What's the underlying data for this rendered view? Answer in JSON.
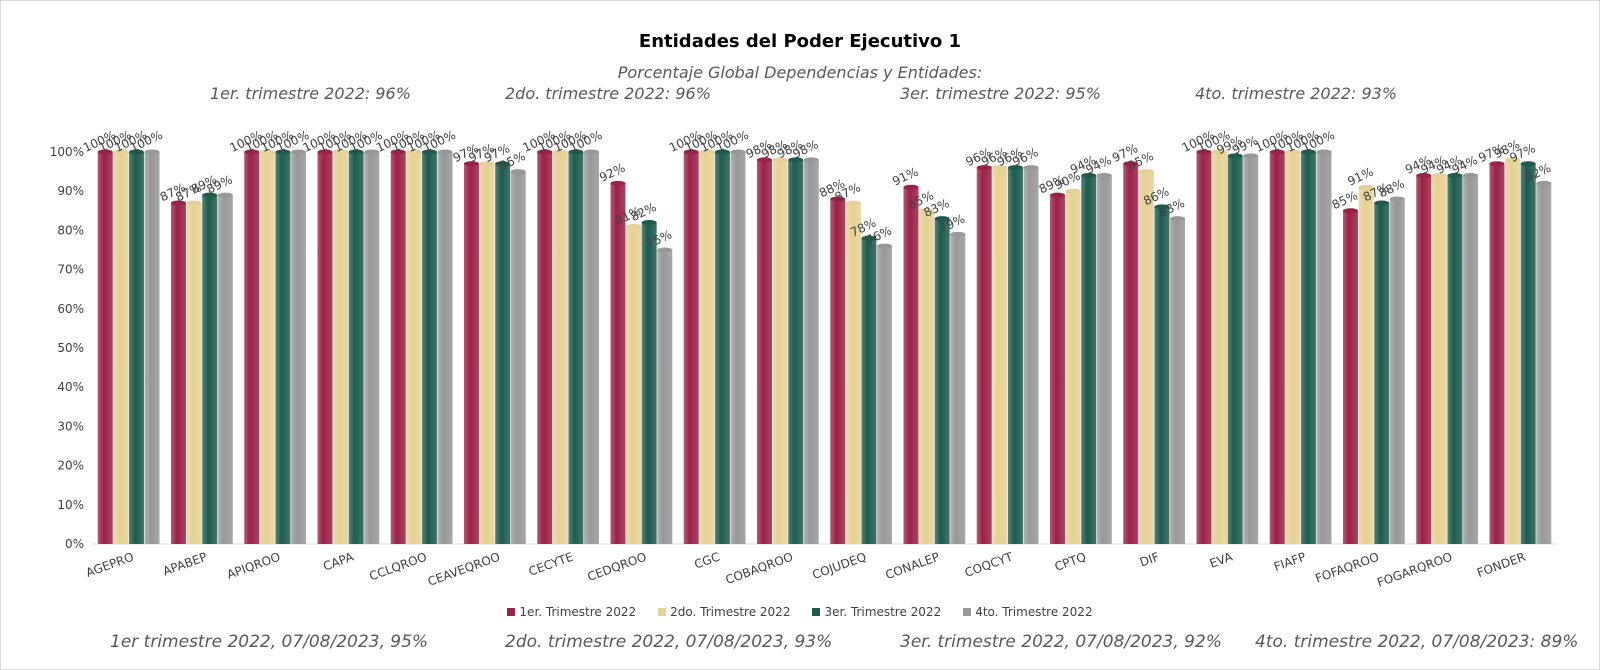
{
  "chart_data": {
    "type": "bar",
    "title": "Entidades del Poder Ejecutivo 1",
    "subtitle": "Porcentaje Global  Dependencias y Entidades:",
    "quarter_notes": [
      "1er. trimestre 2022: 96%",
      "2do. trimestre 2022: 96%",
      "3er. trimestre 2022: 95%",
      "4to. trimestre 2022: 93%"
    ],
    "footer_notes": [
      "1er trimestre  2022,  07/08/2023, 95%",
      "2do. trimestre 2022, 07/08/2023, 93%",
      "3er. trimestre 2022, 07/08/2023, 92%",
      "4to. trimestre 2022, 07/08/2023: 89%"
    ],
    "categories": [
      "AGEPRO",
      "APABEP",
      "APIQROO",
      "CAPA",
      "CCLQROO",
      "CEAVEQROO",
      "CECYTE",
      "CEDQROO",
      "CGC",
      "COBAQROO",
      "COJUDEQ",
      "CONALEP",
      "COQCYT",
      "CPTQ",
      "DIF",
      "EVA",
      "FIAFP",
      "FOFAQROO",
      "FOGARQROO",
      "FONDER"
    ],
    "series": [
      {
        "name": "1er. Trimestre 2022",
        "color": "#9b2247",
        "values": [
          100,
          87,
          100,
          100,
          100,
          97,
          100,
          92,
          100,
          98,
          88,
          91,
          96,
          89,
          97,
          100,
          100,
          85,
          94,
          97
        ]
      },
      {
        "name": "2do. Trimestre 2022",
        "color": "#e6d194",
        "values": [
          100,
          87,
          100,
          100,
          100,
          97,
          100,
          81,
          100,
          98,
          87,
          85,
          96,
          90,
          95,
          100,
          100,
          91,
          94,
          98
        ]
      },
      {
        "name": "3er. Trimestre 2022",
        "color": "#1e5b4f",
        "values": [
          100,
          89,
          100,
          100,
          100,
          97,
          100,
          82,
          100,
          98,
          78,
          83,
          96,
          94,
          86,
          99,
          100,
          87,
          94,
          97
        ]
      },
      {
        "name": "4to. Trimestre 2022",
        "color": "#98989a",
        "values": [
          100,
          89,
          100,
          100,
          100,
          95,
          100,
          75,
          100,
          98,
          76,
          79,
          96,
          94,
          83,
          99,
          100,
          88,
          94,
          92
        ]
      }
    ],
    "ylim": [
      0,
      100
    ],
    "yticks": [
      "0%",
      "10%",
      "20%",
      "30%",
      "40%",
      "50%",
      "60%",
      "70%",
      "80%",
      "90%",
      "100%"
    ],
    "grid": false,
    "legend": "bottom"
  }
}
